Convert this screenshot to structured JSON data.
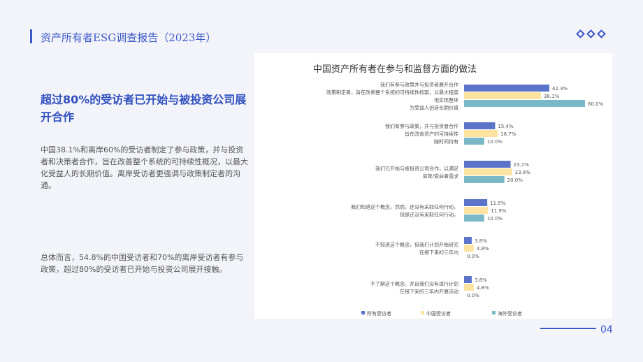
{
  "header": {
    "title": "资产所有者ESG调查报告（2023年）",
    "decoration": "three-diamond-icons"
  },
  "left_panel": {
    "headline": "超过80%的受访者已开始与被投资公司展开合作",
    "paragraph1": "中国38.1%和离岸60%的受访者制定了参与政策，并与投资者和决策者合作，旨在改善整个系统的可持续性概况，以最大化受益人的长期价值。离岸受访者更强调与政策制定者的沟通。",
    "paragraph2": "总体而言，54.8%的中国受访者和70%的离岸受访者有参与政策，超过80%的受访者已开始与投资公司展开接触。"
  },
  "chart_data": {
    "type": "bar",
    "orientation": "horizontal",
    "title": "中国资产所有者在参与和监督方面的做法",
    "categories": [
      [
        "我们有参与政策并与投资者展开合作",
        "政策制定者，旨在改善整个系统的可持续性档案，以最大程度",
        "地实现整体",
        "为受益人创造长期价值"
      ],
      [
        "我们有参与政策，并与投资者合作",
        "旨在改善资产的可持续性",
        "随时间持有"
      ],
      [
        "我们已开始与被投资公司合作，以满足",
        "监管/受益者需求"
      ],
      [
        "我们知道这个概念，然而，还没有采取任何行动，",
        "但是还没有采取任何行动。"
      ],
      [
        "不知道这个概念，但我们计划开始研究",
        "在接下来的三年内"
      ],
      [
        "不了解这个概念，并且我们没有进行计划",
        "在接下来的三年内开展活动"
      ]
    ],
    "series": [
      {
        "name": "所有受访者",
        "color": "#5b74c9",
        "values": [
          42.3,
          15.4,
          23.1,
          11.5,
          3.8,
          3.8
        ],
        "labels": [
          "42.3%",
          "15.4%",
          "23.1%",
          "11.5%",
          "3.8%",
          "3.8%"
        ]
      },
      {
        "name": "中国受访者",
        "color": "#fde3a0",
        "values": [
          38.1,
          16.7,
          23.8,
          11.9,
          4.8,
          4.8
        ],
        "labels": [
          "38.1%",
          "16.7%",
          "23.8%",
          "11.9%",
          "4.8%",
          "4.8%"
        ]
      },
      {
        "name": "海外受访者",
        "color": "#79b8c6",
        "values": [
          60.0,
          10.0,
          20.0,
          10.0,
          0.0,
          0.0
        ],
        "labels": [
          "60.0%",
          "10.0%",
          "20.0%",
          "10.0%",
          "0.0%",
          "0.0%"
        ]
      }
    ],
    "xlim": [
      0,
      60
    ],
    "grid": false,
    "legend_position": "bottom"
  },
  "footer": {
    "page_number": "04"
  }
}
